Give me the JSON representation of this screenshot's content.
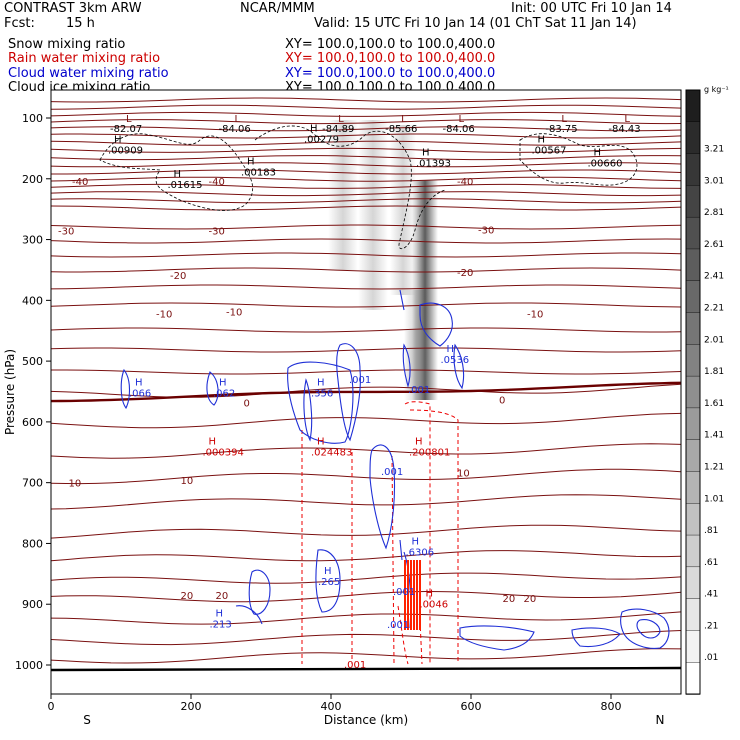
{
  "header": {
    "model": "CONTRAST  3km ARW",
    "center": "NCAR/MMM",
    "init": "Init: 00 UTC Fri 10 Jan 14",
    "fcst_label": "Fcst:",
    "fcst_value": "15 h",
    "valid": "Valid: 15 UTC Fri 10 Jan 14 (01 ChT Sat 11 Jan 14)"
  },
  "legend": [
    {
      "name": "Snow mixing ratio",
      "xy": "XY=  100.0,100.0  to  100.0,400.0",
      "color": "#000000"
    },
    {
      "name": "Rain water mixing ratio",
      "xy": "XY=  100.0,100.0  to  100.0,400.0",
      "color": "#cc0000"
    },
    {
      "name": "Cloud water mixing ratio",
      "xy": "XY=  100.0,100.0  to  100.0,400.0",
      "color": "#0000cc"
    },
    {
      "name": "Cloud ice mixing ratio",
      "xy": "XY=  100.0,100.0  to  100.0,400.0",
      "color": "#000000"
    }
  ],
  "chart_data": {
    "type": "heatmap",
    "subtype": "vertical cross-section with contour overlays",
    "xlabel": "Distance (km)",
    "ylabel": "Pressure (hPa)",
    "xlim": [
      0,
      900
    ],
    "ylim": [
      1050,
      60
    ],
    "x_ticks": [
      "0",
      "200",
      "400",
      "600",
      "800"
    ],
    "y_ticks": [
      "100",
      "200",
      "300",
      "400",
      "500",
      "600",
      "700",
      "800",
      "900",
      "1000"
    ],
    "y_tick_values": [
      100,
      200,
      300,
      400,
      500,
      600,
      700,
      800,
      900,
      1000
    ],
    "x_tick_values": [
      0,
      200,
      400,
      600,
      800
    ],
    "end_labels": {
      "left": "S",
      "right": "N"
    },
    "colorbar": {
      "unit": "g kg⁻¹",
      "labels": [
        "3.21",
        "3.01",
        "2.81",
        "2.61",
        "2.41",
        "2.21",
        "2.01",
        "1.81",
        "1.61",
        "1.41",
        "1.21",
        "1.01",
        ".81",
        ".61",
        ".41",
        ".21",
        ".01"
      ]
    },
    "temperature_contours": [
      {
        "level": "-40",
        "labels": [
          {
            "x": 30,
            "p": 210
          },
          {
            "x": 225,
            "p": 210
          },
          {
            "x": 580,
            "p": 210
          }
        ]
      },
      {
        "level": "-30",
        "labels": [
          {
            "x": 10,
            "p": 292
          },
          {
            "x": 225,
            "p": 292
          },
          {
            "x": 610,
            "p": 290
          }
        ]
      },
      {
        "level": "-20",
        "labels": [
          {
            "x": 170,
            "p": 365
          },
          {
            "x": 580,
            "p": 360
          }
        ]
      },
      {
        "level": "-10",
        "labels": [
          {
            "x": 150,
            "p": 428
          },
          {
            "x": 250,
            "p": 425
          },
          {
            "x": 680,
            "p": 428
          }
        ]
      },
      {
        "level": "0",
        "labels": [
          {
            "x": 275,
            "p": 575
          },
          {
            "x": 640,
            "p": 570
          }
        ]
      },
      {
        "level": "10",
        "labels": [
          {
            "x": 25,
            "p": 706
          },
          {
            "x": 185,
            "p": 702
          },
          {
            "x": 580,
            "p": 690
          }
        ]
      },
      {
        "level": "20",
        "labels": [
          {
            "x": 185,
            "p": 891
          },
          {
            "x": 235,
            "p": 891
          },
          {
            "x": 645,
            "p": 896
          },
          {
            "x": 675,
            "p": 896
          }
        ]
      }
    ],
    "pressure_min_labels": [
      {
        "p": "82.07",
        "x": 110
      },
      {
        "p": "84.06",
        "x": 265
      },
      {
        "p": "84.89",
        "x": 413
      },
      {
        "p": "85.66",
        "x": 503
      },
      {
        "p": "84.06",
        "x": 585
      },
      {
        "p": "83.75",
        "x": 732
      },
      {
        "p": "84.43",
        "x": 822
      }
    ],
    "max_labels": [
      {
        "kind": "snow",
        "label": "H",
        "value": ".00909",
        "x": 90,
        "p": 158
      },
      {
        "kind": "snow",
        "label": "H",
        "value": ".00279",
        "x": 370,
        "p": 140
      },
      {
        "kind": "snow",
        "label": "H",
        "value": ".01393",
        "x": 530,
        "p": 180
      },
      {
        "kind": "snow",
        "label": "H",
        "value": ".00567",
        "x": 695,
        "p": 158
      },
      {
        "kind": "snow",
        "label": "H",
        "value": ".00660",
        "x": 775,
        "p": 180
      },
      {
        "kind": "snow",
        "label": "H",
        "value": ".01615",
        "x": 175,
        "p": 215
      },
      {
        "kind": "snow",
        "label": "H",
        "value": ".00183",
        "x": 280,
        "p": 195
      },
      {
        "kind": "cloud_water",
        "label": "H",
        "value": ".066",
        "x": 120,
        "p": 558
      },
      {
        "kind": "cloud_water",
        "label": "H",
        "value": ".062",
        "x": 240,
        "p": 558
      },
      {
        "kind": "cloud_water",
        "label": "H",
        "value": ".356",
        "x": 380,
        "p": 558
      },
      {
        "kind": "cloud_water",
        "label": "H",
        "value": ".0536",
        "x": 565,
        "p": 503
      },
      {
        "kind": "cloud_water",
        "label": "H",
        "value": ".265",
        "x": 390,
        "p": 868
      },
      {
        "kind": "cloud_water",
        "label": "H",
        "value": ".6306",
        "x": 515,
        "p": 820
      },
      {
        "kind": "cloud_water",
        "label": "H",
        "value": ".213",
        "x": 235,
        "p": 938
      },
      {
        "kind": "rain",
        "label": "H",
        "value": ".000394",
        "x": 225,
        "p": 655
      },
      {
        "kind": "rain",
        "label": "H",
        "value": ".024483",
        "x": 380,
        "p": 655
      },
      {
        "kind": "rain",
        "label": "H",
        "value": ".200801",
        "x": 520,
        "p": 655
      },
      {
        "kind": "rain",
        "label": "H",
        "value": ".0046",
        "x": 535,
        "p": 905
      }
    ],
    "cloud_water_contour_labels": [
      ".001",
      ".001",
      ".001"
    ]
  }
}
